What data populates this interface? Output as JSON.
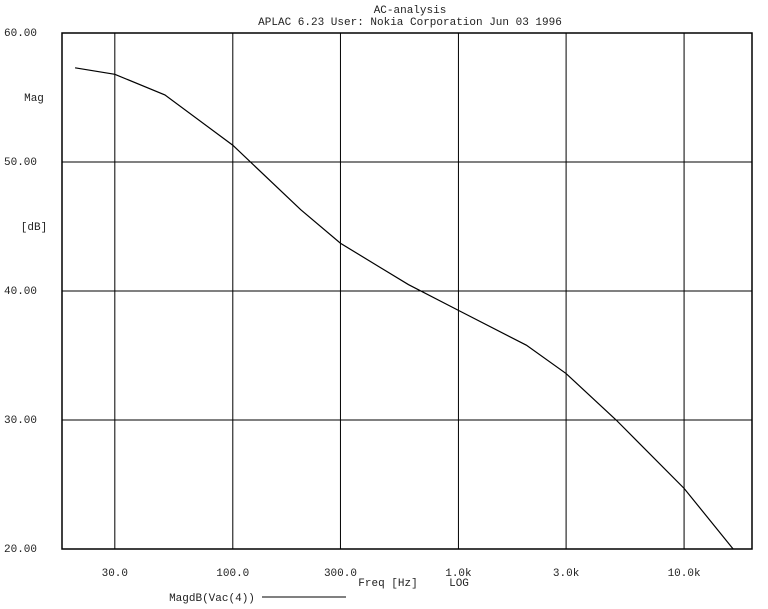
{
  "chart_data": {
    "type": "line",
    "title": "AC-analysis",
    "subtitle": "APLAC 6.23 User: Nokia Corporation  Jun 03 1996",
    "y_label_top": "Mag",
    "y_label_unit": "[dB]",
    "x_label": "Freq [Hz]",
    "x_scale_label": "LOG",
    "x_scale": "log",
    "grid": true,
    "x": [
      20,
      30,
      50,
      100,
      200,
      300,
      600,
      1000,
      2000,
      3000,
      5000,
      10000,
      16500
    ],
    "series": [
      {
        "name": "MagdB(Vac(4))",
        "color": "#000000",
        "values": [
          57.3,
          56.8,
          55.2,
          51.3,
          46.3,
          43.7,
          40.5,
          38.5,
          35.8,
          33.6,
          30.0,
          24.7,
          20.0
        ]
      }
    ],
    "xlim": [
      17.5,
      20000
    ],
    "ylim": [
      20,
      60
    ],
    "xticks": [
      {
        "value": 30,
        "label": "30.0"
      },
      {
        "value": 100,
        "label": "100.0"
      },
      {
        "value": 300,
        "label": "300.0"
      },
      {
        "value": 1000,
        "label": "1.0k"
      },
      {
        "value": 3000,
        "label": "3.0k"
      },
      {
        "value": 10000,
        "label": "10.0k"
      }
    ],
    "yticks": [
      {
        "value": 20,
        "label": "20.00"
      },
      {
        "value": 30,
        "label": "30.00"
      },
      {
        "value": 40,
        "label": "40.00"
      },
      {
        "value": 50,
        "label": "50.00"
      },
      {
        "value": 60,
        "label": "60.00"
      }
    ]
  }
}
